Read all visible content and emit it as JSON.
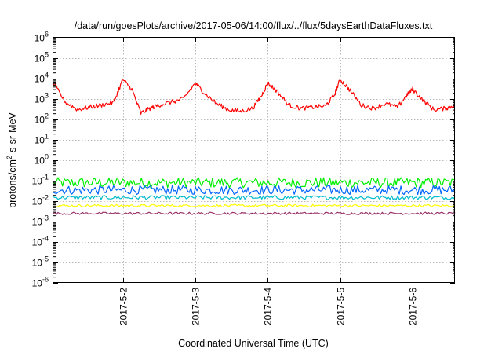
{
  "chart_data": {
    "type": "line",
    "title": "/data/run/goesPlots/archive/2017-05-06/14:00/flux/../flux/5daysEarthDataFluxes.txt",
    "xlabel": "Coordinated Universal Time (UTC)",
    "ylabel": "protons/cm2-s-sr-MeV",
    "ylabel_parts": {
      "before": "protons/cm",
      "sup": "2",
      "after": "-s-sr-MeV"
    },
    "y_scale": "log",
    "ylim": [
      1e-06,
      1000000.0
    ],
    "y_ticks": [
      {
        "value": 1e-06,
        "base": "10",
        "exp": "-6"
      },
      {
        "value": 1e-05,
        "base": "10",
        "exp": "-5"
      },
      {
        "value": 0.0001,
        "base": "10",
        "exp": "-4"
      },
      {
        "value": 0.001,
        "base": "10",
        "exp": "-3"
      },
      {
        "value": 0.01,
        "base": "10",
        "exp": "-2"
      },
      {
        "value": 0.1,
        "base": "10",
        "exp": "-1"
      },
      {
        "value": 1,
        "base": "10",
        "exp": "0"
      },
      {
        "value": 10,
        "base": "10",
        "exp": "1"
      },
      {
        "value": 100,
        "base": "10",
        "exp": "2"
      },
      {
        "value": 1000,
        "base": "10",
        "exp": "3"
      },
      {
        "value": 10000,
        "base": "10",
        "exp": "4"
      },
      {
        "value": 100000,
        "base": "10",
        "exp": "5"
      },
      {
        "value": 1000000,
        "base": "10",
        "exp": "6"
      }
    ],
    "xlim": [
      "2017-05-01 01:00",
      "2017-05-06 14:00"
    ],
    "x_ticks": [
      {
        "value": "2017-05-02 00:00",
        "label": "2017-5-2"
      },
      {
        "value": "2017-05-03 00:00",
        "label": "2017-5-3"
      },
      {
        "value": "2017-05-04 00:00",
        "label": "2017-5-4"
      },
      {
        "value": "2017-05-05 00:00",
        "label": "2017-5-5"
      },
      {
        "value": "2017-05-06 00:00",
        "label": "2017-5-6"
      }
    ],
    "grid": true,
    "series": [
      {
        "color": "#ff0000",
        "x": [
          "2017-05-01 01:00",
          "2017-05-01 05:00",
          "2017-05-01 09:00",
          "2017-05-01 13:00",
          "2017-05-01 17:00",
          "2017-05-01 21:00",
          "2017-05-02 00:00",
          "2017-05-02 03:00",
          "2017-05-02 06:00",
          "2017-05-02 09:00",
          "2017-05-02 12:00",
          "2017-05-02 16:00",
          "2017-05-02 20:00",
          "2017-05-03 00:00",
          "2017-05-03 03:00",
          "2017-05-03 07:00",
          "2017-05-03 11:00",
          "2017-05-03 15:00",
          "2017-05-03 19:00",
          "2017-05-03 22:00",
          "2017-05-04 00:00",
          "2017-05-04 03:00",
          "2017-05-04 07:00",
          "2017-05-04 11:00",
          "2017-05-04 15:00",
          "2017-05-04 19:00",
          "2017-05-04 22:00",
          "2017-05-05 00:00",
          "2017-05-05 03:00",
          "2017-05-05 07:00",
          "2017-05-05 11:00",
          "2017-05-05 15:00",
          "2017-05-05 19:00",
          "2017-05-05 22:00",
          "2017-05-06 00:00",
          "2017-05-06 03:00",
          "2017-05-06 07:00",
          "2017-05-06 11:00",
          "2017-05-06 14:00"
        ],
        "y": [
          6000,
          700,
          300,
          400,
          500,
          700,
          9000,
          3000,
          200,
          350,
          500,
          700,
          1000,
          6000,
          2000,
          600,
          300,
          250,
          350,
          1500,
          6000,
          2500,
          500,
          350,
          400,
          450,
          1500,
          9000,
          3000,
          500,
          350,
          600,
          400,
          1500,
          3000,
          1000,
          300,
          350,
          500
        ]
      },
      {
        "color": "#00ee00",
        "x": [
          "2017-05-01 01:00",
          "2017-05-06 14:00"
        ],
        "y_center": 0.08,
        "spread_decades": 0.25
      },
      {
        "color": "#0066ff",
        "x": [
          "2017-05-01 01:00",
          "2017-05-06 14:00"
        ],
        "y_center": 0.035,
        "spread_decades": 0.22
      },
      {
        "color": "#00bbcc",
        "x": [
          "2017-05-01 01:00",
          "2017-05-06 14:00"
        ],
        "y_center": 0.015,
        "spread_decades": 0.1
      },
      {
        "color": "#ffff00",
        "x": [
          "2017-05-01 01:00",
          "2017-05-06 14:00"
        ],
        "y_center": 0.006,
        "spread_decades": 0.06
      },
      {
        "color": "#993366",
        "x": [
          "2017-05-01 01:00",
          "2017-05-06 14:00"
        ],
        "y_center": 0.0025,
        "spread_decades": 0.06
      }
    ]
  }
}
